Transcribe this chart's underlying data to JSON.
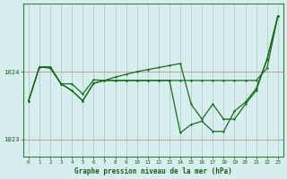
{
  "title": "Graphe pression niveau de la mer (hPa)",
  "background_color": "#d6eeee",
  "grid_color": "#b0cccc",
  "line_color": "#1a6b1a",
  "xlim": [
    -0.5,
    23.5
  ],
  "ylim": [
    1022.75,
    1025.0
  ],
  "yticks": [
    1023,
    1024
  ],
  "xticks": [
    0,
    1,
    2,
    3,
    4,
    5,
    6,
    7,
    8,
    9,
    10,
    11,
    12,
    13,
    14,
    15,
    16,
    17,
    18,
    19,
    20,
    21,
    22,
    23
  ],
  "x": [
    0,
    1,
    2,
    3,
    4,
    5,
    6,
    7,
    8,
    9,
    10,
    11,
    12,
    13,
    14,
    15,
    16,
    17,
    18,
    19,
    20,
    21,
    22,
    23
  ],
  "sA_y": [
    1023.57,
    1024.07,
    1024.07,
    1023.82,
    1023.82,
    1023.67,
    1023.88,
    1023.87,
    1023.87,
    1023.87,
    1023.87,
    1023.87,
    1023.87,
    1023.87,
    1023.87,
    1023.87,
    1023.87,
    1023.87,
    1023.87,
    1023.87,
    1023.87,
    1023.87,
    1024.05,
    1024.82
  ],
  "sB_y": [
    1023.57,
    1024.07,
    1024.07,
    1023.82,
    1023.72,
    1023.57,
    1023.83,
    1023.87,
    1023.92,
    1023.96,
    1024.0,
    1024.03,
    1024.06,
    1024.09,
    1024.12,
    1023.52,
    1023.3,
    1023.52,
    1023.3,
    1023.3,
    1023.52,
    1023.72,
    1024.18,
    1024.82
  ],
  "sC_y": [
    1023.57,
    1024.07,
    1024.05,
    1023.82,
    1023.72,
    1023.57,
    1023.83,
    1023.87,
    1023.87,
    1023.87,
    1023.87,
    1023.87,
    1023.87,
    1023.87,
    1023.1,
    1023.22,
    1023.27,
    1023.12,
    1023.12,
    1023.42,
    1023.55,
    1023.75,
    1024.18,
    1024.82
  ]
}
